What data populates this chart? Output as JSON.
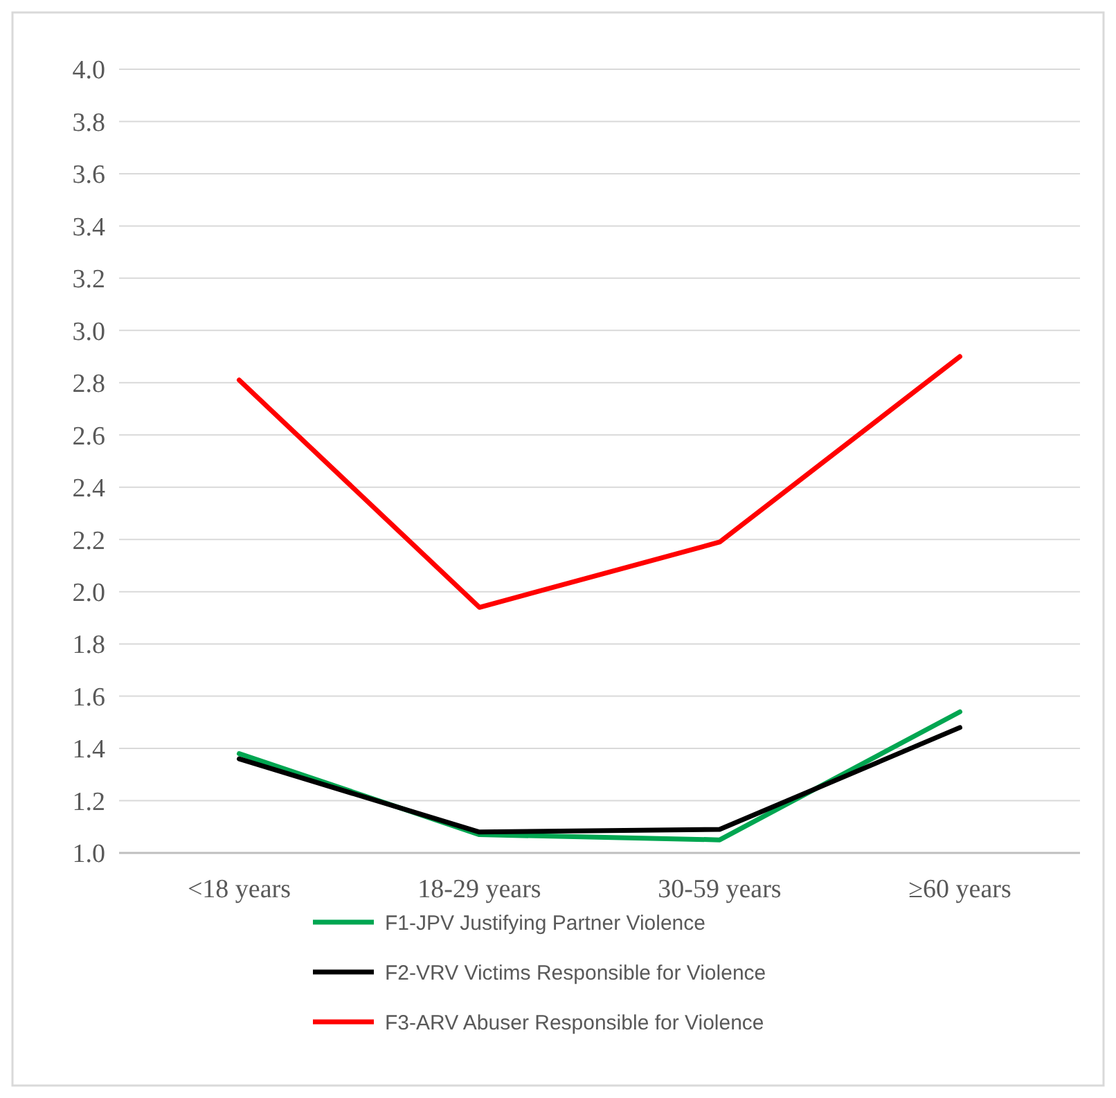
{
  "chart_data": {
    "type": "line",
    "categories": [
      "<18 years",
      "18-29 years",
      "30-59 years",
      "≥60 years"
    ],
    "series": [
      {
        "name": "F1-JPV Justifying Partner Violence",
        "color": "#00a651",
        "values": [
          1.38,
          1.07,
          1.05,
          1.54
        ]
      },
      {
        "name": "F2-VRV Victims Responsible for Violence",
        "color": "#000000",
        "values": [
          1.36,
          1.08,
          1.09,
          1.48
        ]
      },
      {
        "name": "F3-ARV Abuser Responsible for Violence",
        "color": "#ff0000",
        "values": [
          2.81,
          1.94,
          2.19,
          2.9
        ]
      }
    ],
    "ylim": [
      1.0,
      4.0
    ],
    "yticks": [
      {
        "value": 1.0,
        "label": "1.0"
      },
      {
        "value": 1.2,
        "label": "1.2"
      },
      {
        "value": 1.4,
        "label": "1.4"
      },
      {
        "value": 1.6,
        "label": "1.6"
      },
      {
        "value": 1.8,
        "label": "1.8"
      },
      {
        "value": 2.0,
        "label": "2.0"
      },
      {
        "value": 2.2,
        "label": "2.2"
      },
      {
        "value": 2.4,
        "label": "2.4"
      },
      {
        "value": 2.6,
        "label": "2.6"
      },
      {
        "value": 2.8,
        "label": "2.8"
      },
      {
        "value": 3.0,
        "label": "3.0"
      },
      {
        "value": 3.2,
        "label": "3.2"
      },
      {
        "value": 3.4,
        "label": "3.4"
      },
      {
        "value": 3.6,
        "label": "3.6"
      },
      {
        "value": 3.8,
        "label": "3.8"
      },
      {
        "value": 4.0,
        "label": "4.0"
      }
    ],
    "grid": "y",
    "legend": "bottom",
    "marker": "none",
    "line_style": "solid"
  }
}
